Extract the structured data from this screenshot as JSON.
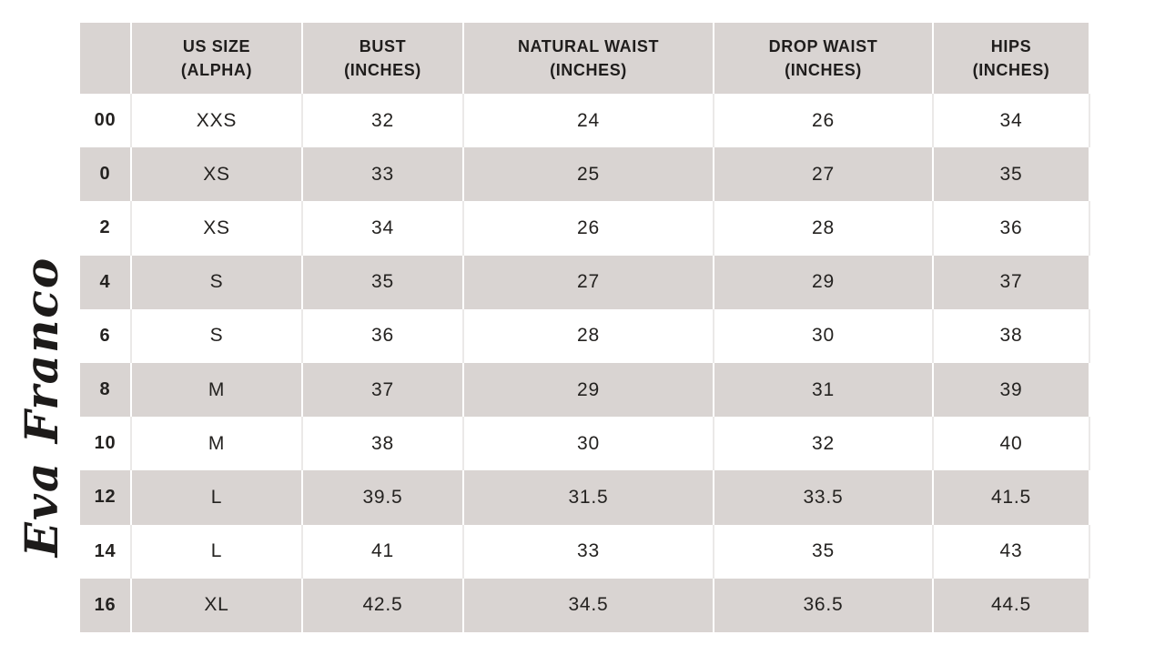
{
  "brand": {
    "logo_text": "Eva Franco"
  },
  "colors": {
    "header_bg": "#d9d4d2",
    "stripe_bg": "#d9d4d2",
    "row_white": "#ffffff",
    "text": "#1f1d1c"
  },
  "table": {
    "columns": [
      {
        "line1": "",
        "line2": ""
      },
      {
        "line1": "US SIZE",
        "line2": "(ALPHA)"
      },
      {
        "line1": "BUST",
        "line2": "(INCHES)"
      },
      {
        "line1": "NATURAL WAIST",
        "line2": "(INCHES)"
      },
      {
        "line1": "DROP WAIST",
        "line2": "(INCHES)"
      },
      {
        "line1": "HIPS",
        "line2": "(INCHES)"
      }
    ],
    "rows": [
      [
        "00",
        "XXS",
        "32",
        "24",
        "26",
        "34"
      ],
      [
        "0",
        "XS",
        "33",
        "25",
        "27",
        "35"
      ],
      [
        "2",
        "XS",
        "34",
        "26",
        "28",
        "36"
      ],
      [
        "4",
        "S",
        "35",
        "27",
        "29",
        "37"
      ],
      [
        "6",
        "S",
        "36",
        "28",
        "30",
        "38"
      ],
      [
        "8",
        "M",
        "37",
        "29",
        "31",
        "39"
      ],
      [
        "10",
        "M",
        "38",
        "30",
        "32",
        "40"
      ],
      [
        "12",
        "L",
        "39.5",
        "31.5",
        "33.5",
        "41.5"
      ],
      [
        "14",
        "L",
        "41",
        "33",
        "35",
        "43"
      ],
      [
        "16",
        "XL",
        "42.5",
        "34.5",
        "36.5",
        "44.5"
      ]
    ]
  },
  "chart_data": {
    "type": "table",
    "columns": [
      "",
      "US SIZE (ALPHA)",
      "BUST (INCHES)",
      "NATURAL WAIST (INCHES)",
      "DROP WAIST (INCHES)",
      "HIPS (INCHES)"
    ],
    "rows": [
      [
        "00",
        "XXS",
        32,
        24,
        26,
        34
      ],
      [
        "0",
        "XS",
        33,
        25,
        27,
        35
      ],
      [
        "2",
        "XS",
        34,
        26,
        28,
        36
      ],
      [
        "4",
        "S",
        35,
        27,
        29,
        37
      ],
      [
        "6",
        "S",
        36,
        28,
        30,
        38
      ],
      [
        "8",
        "M",
        37,
        29,
        31,
        39
      ],
      [
        "10",
        "M",
        38,
        30,
        32,
        40
      ],
      [
        "12",
        "L",
        39.5,
        31.5,
        33.5,
        41.5
      ],
      [
        "14",
        "L",
        41,
        33,
        35,
        43
      ],
      [
        "16",
        "XL",
        42.5,
        34.5,
        36.5,
        44.5
      ]
    ],
    "annotations": [
      "Eva Franco"
    ],
    "layout": {
      "header_fill": "#d9d4d2",
      "stripe_fill": "#d9d4d2",
      "striping": "even rows white, odd rows grey"
    }
  }
}
